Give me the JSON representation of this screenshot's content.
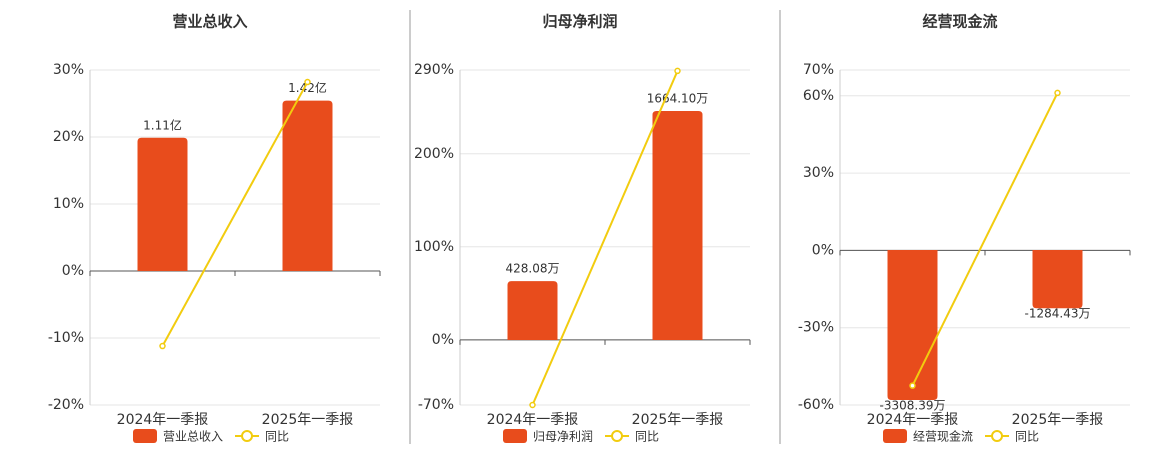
{
  "chart_data": [
    {
      "type": "combo",
      "title": "营业总收入",
      "categories": [
        "2024年一季报",
        "2025年一季报"
      ],
      "series": [
        {
          "name": "营业总收入",
          "type": "bar",
          "axis": "y2",
          "color": "#e84c1c",
          "values": [
            1.11,
            1.42
          ],
          "value_labels": [
            "1.11亿",
            "1.42亿"
          ]
        },
        {
          "name": "同比",
          "type": "line",
          "color": "#f2cc0f",
          "values": [
            -11.2,
            28.2
          ]
        }
      ],
      "ylim": [
        -20,
        30
      ],
      "yticks": [
        {
          "value": -20,
          "label": "-20%"
        },
        {
          "value": -10,
          "label": "-10%"
        },
        {
          "value": 0,
          "label": "0%"
        },
        {
          "value": 10,
          "label": "10%"
        },
        {
          "value": 20,
          "label": "20%"
        },
        {
          "value": 30,
          "label": "30%"
        }
      ],
      "y2lim": [
        -1.117,
        1.675
      ],
      "grid": true
    },
    {
      "type": "combo",
      "title": "归母净利润",
      "categories": [
        "2024年一季报",
        "2025年一季报"
      ],
      "series": [
        {
          "name": "归母净利润",
          "type": "bar",
          "axis": "y2",
          "color": "#e84c1c",
          "values": [
            428.08,
            1664.1
          ],
          "value_labels": [
            "428.08万",
            "1664.10万"
          ]
        },
        {
          "name": "同比",
          "type": "line",
          "color": "#f2cc0f",
          "values": [
            -70,
            289
          ]
        }
      ],
      "ylim": [
        -70,
        290
      ],
      "yticks": [
        {
          "value": -70,
          "label": "-70%"
        },
        {
          "value": 0,
          "label": "0%"
        },
        {
          "value": 100,
          "label": "100%"
        },
        {
          "value": 200,
          "label": "200%"
        },
        {
          "value": 290,
          "label": "290%"
        }
      ],
      "y2lim": [
        -472,
        1962
      ],
      "grid": true
    },
    {
      "type": "combo",
      "title": "经营现金流",
      "categories": [
        "2024年一季报",
        "2025年一季报"
      ],
      "series": [
        {
          "name": "经营现金流",
          "type": "bar",
          "axis": "y2",
          "color": "#e84c1c",
          "values": [
            -3308.39,
            -1284.43
          ],
          "value_labels": [
            "-3308.39万",
            "-1284.43万"
          ]
        },
        {
          "name": "同比",
          "type": "line",
          "color": "#f2cc0f",
          "values": [
            -52.5,
            61.1
          ]
        }
      ],
      "ylim": [
        -60,
        70
      ],
      "yticks": [
        {
          "value": -60,
          "label": "-60%"
        },
        {
          "value": -30,
          "label": "-30%"
        },
        {
          "value": 0,
          "label": "0%"
        },
        {
          "value": 30,
          "label": "30%"
        },
        {
          "value": 60,
          "label": "60%"
        },
        {
          "value": 70,
          "label": "70%"
        }
      ],
      "y2lim": [
        -3419,
        3970
      ],
      "grid": true
    }
  ]
}
